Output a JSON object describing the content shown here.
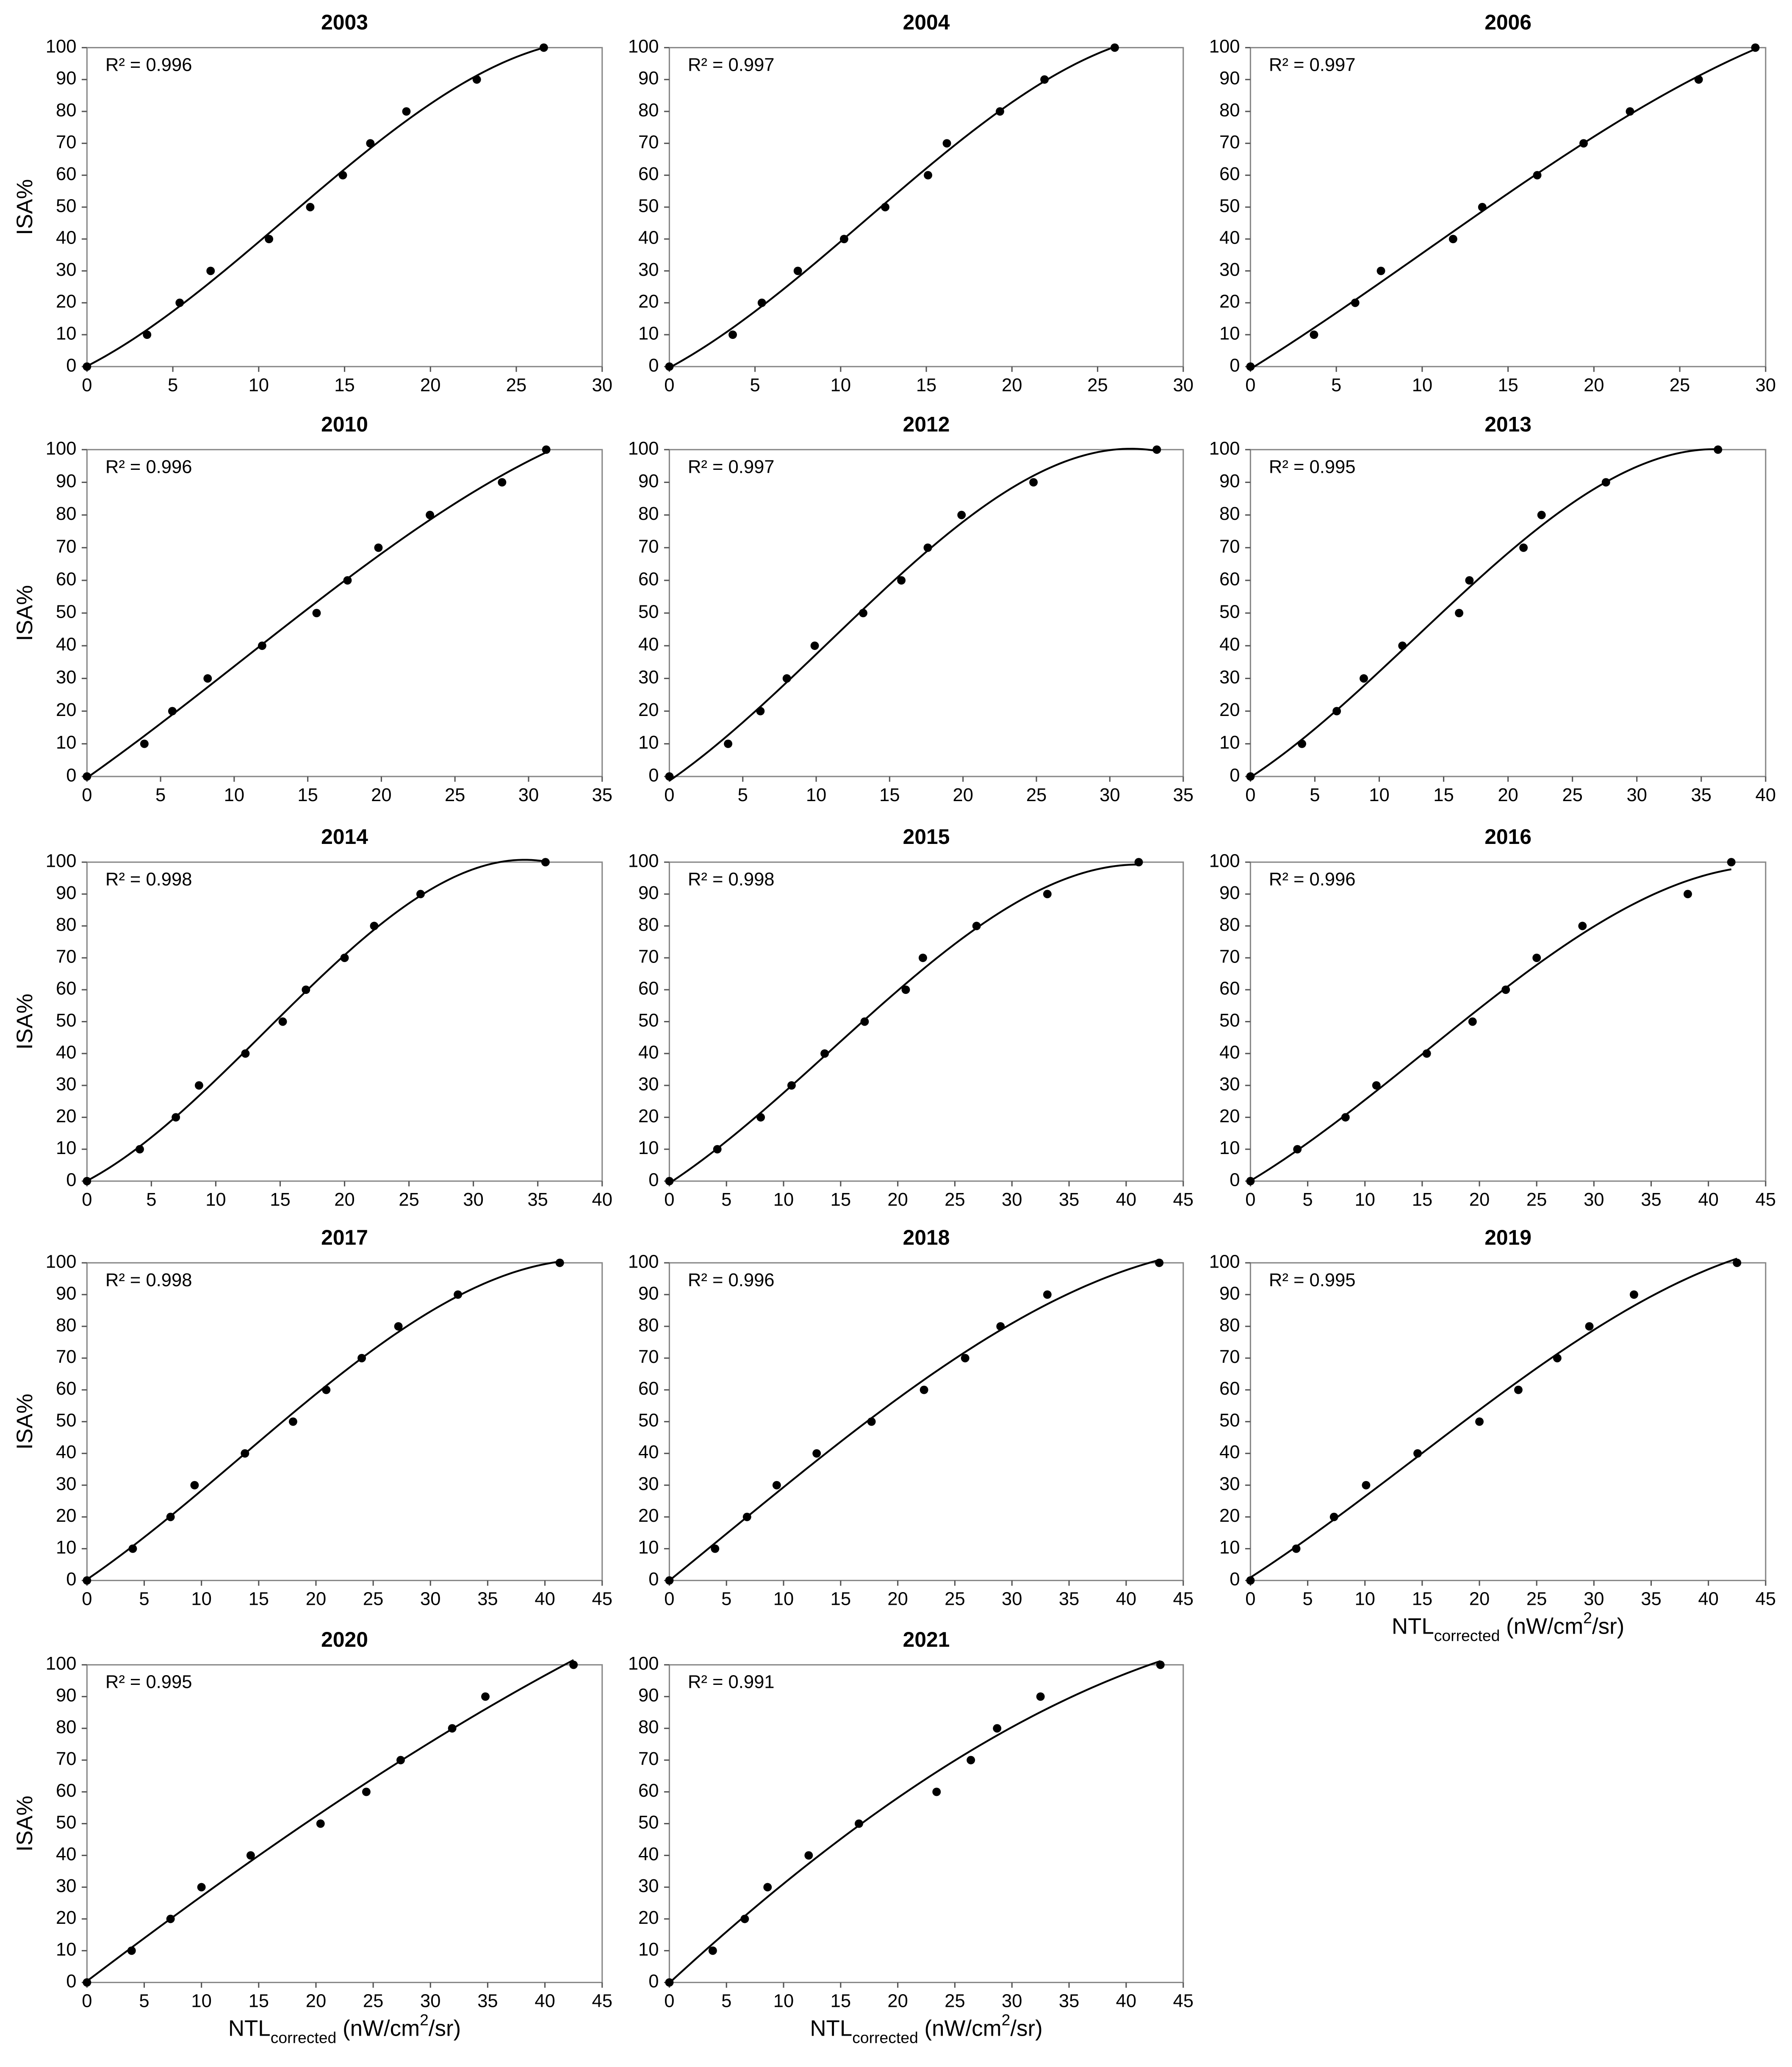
{
  "chart_data": [
    {
      "type": "scatter",
      "title": "2003",
      "annotation": "R² = 0.996",
      "ylabel": "ISA%",
      "color": "#000000",
      "trendline": true,
      "x": [
        0,
        3.5,
        5.4,
        7.2,
        10.6,
        13,
        14.9,
        16.5,
        18.6,
        22.7,
        26.6
      ],
      "values": [
        0,
        10,
        20,
        30,
        40,
        50,
        60,
        70,
        80,
        90,
        100
      ],
      "xlim": [
        0,
        30
      ],
      "xticks": [
        0,
        5,
        10,
        15,
        20,
        25,
        30
      ],
      "ylim": [
        0,
        100
      ],
      "yticks": [
        0,
        10,
        20,
        30,
        40,
        50,
        60,
        70,
        80,
        90,
        100
      ]
    },
    {
      "type": "scatter",
      "title": "2004",
      "annotation": "R² = 0.997",
      "color": "#000000",
      "trendline": true,
      "x": [
        0,
        3.7,
        5.4,
        7.5,
        10.2,
        12.6,
        15.1,
        16.2,
        19.3,
        21.9,
        26
      ],
      "values": [
        0,
        10,
        20,
        30,
        40,
        50,
        60,
        70,
        80,
        90,
        100
      ],
      "xlim": [
        0,
        30
      ],
      "xticks": [
        0,
        5,
        10,
        15,
        20,
        25,
        30
      ],
      "ylim": [
        0,
        100
      ],
      "yticks": [
        0,
        10,
        20,
        30,
        40,
        50,
        60,
        70,
        80,
        90,
        100
      ]
    },
    {
      "type": "scatter",
      "title": "2006",
      "annotation": "R² = 0.997",
      "color": "#000000",
      "trendline": true,
      "x": [
        0,
        3.7,
        6.1,
        7.6,
        11.8,
        13.5,
        16.7,
        19.4,
        22.1,
        26.1,
        29.4
      ],
      "values": [
        0,
        10,
        20,
        30,
        40,
        50,
        60,
        70,
        80,
        90,
        100
      ],
      "xlim": [
        0,
        30
      ],
      "xticks": [
        0,
        5,
        10,
        15,
        20,
        25,
        30
      ],
      "ylim": [
        0,
        100
      ],
      "yticks": [
        0,
        10,
        20,
        30,
        40,
        50,
        60,
        70,
        80,
        90,
        100
      ]
    },
    {
      "type": "scatter",
      "title": "2010",
      "annotation": "R² = 0.996",
      "ylabel": "ISA%",
      "color": "#000000",
      "trendline": true,
      "x": [
        0,
        3.9,
        5.8,
        8.2,
        11.9,
        15.6,
        17.7,
        19.8,
        23.3,
        28.2,
        31.2
      ],
      "values": [
        0,
        10,
        20,
        30,
        40,
        50,
        60,
        70,
        80,
        90,
        100
      ],
      "xlim": [
        0,
        35
      ],
      "xticks": [
        0,
        5,
        10,
        15,
        20,
        25,
        30,
        35
      ],
      "ylim": [
        0,
        100
      ],
      "yticks": [
        0,
        10,
        20,
        30,
        40,
        50,
        60,
        70,
        80,
        90,
        100
      ]
    },
    {
      "type": "scatter",
      "title": "2012",
      "annotation": "R² = 0.997",
      "color": "#000000",
      "trendline": true,
      "x": [
        0,
        4,
        6.2,
        8,
        9.9,
        13.2,
        15.8,
        17.6,
        19.9,
        24.8,
        33.2
      ],
      "values": [
        0,
        10,
        20,
        30,
        40,
        50,
        60,
        70,
        80,
        90,
        100
      ],
      "xlim": [
        0,
        35
      ],
      "xticks": [
        0,
        5,
        10,
        15,
        20,
        25,
        30,
        35
      ],
      "ylim": [
        0,
        100
      ],
      "yticks": [
        0,
        10,
        20,
        30,
        40,
        50,
        60,
        70,
        80,
        90,
        100
      ]
    },
    {
      "type": "scatter",
      "title": "2013",
      "annotation": "R² = 0.995",
      "color": "#000000",
      "trendline": true,
      "x": [
        0,
        4,
        6.7,
        8.8,
        11.8,
        16.2,
        17,
        21.2,
        22.6,
        27.6,
        36.3
      ],
      "values": [
        0,
        10,
        20,
        30,
        40,
        50,
        60,
        70,
        80,
        90,
        100
      ],
      "xlim": [
        0,
        40
      ],
      "xticks": [
        0,
        5,
        10,
        15,
        20,
        25,
        30,
        35,
        40
      ],
      "ylim": [
        0,
        100
      ],
      "yticks": [
        0,
        10,
        20,
        30,
        40,
        50,
        60,
        70,
        80,
        90,
        100
      ]
    },
    {
      "type": "scatter",
      "title": "2014",
      "annotation": "R² = 0.998",
      "ylabel": "ISA%",
      "color": "#000000",
      "trendline": true,
      "x": [
        0,
        4.1,
        6.9,
        8.7,
        12.3,
        15.2,
        17,
        20,
        22.3,
        25.9,
        35.6
      ],
      "values": [
        0,
        10,
        20,
        30,
        40,
        50,
        60,
        70,
        80,
        90,
        100
      ],
      "xlim": [
        0,
        40
      ],
      "xticks": [
        0,
        5,
        10,
        15,
        20,
        25,
        30,
        35,
        40
      ],
      "ylim": [
        0,
        100
      ],
      "yticks": [
        0,
        10,
        20,
        30,
        40,
        50,
        60,
        70,
        80,
        90,
        100
      ]
    },
    {
      "type": "scatter",
      "title": "2015",
      "annotation": "R² = 0.998",
      "color": "#000000",
      "trendline": true,
      "x": [
        0,
        4.2,
        8,
        10.7,
        13.6,
        17.1,
        20.7,
        22.2,
        26.9,
        33.1,
        41.1
      ],
      "values": [
        0,
        10,
        20,
        30,
        40,
        50,
        60,
        70,
        80,
        90,
        100
      ],
      "xlim": [
        0,
        45
      ],
      "xticks": [
        0,
        5,
        10,
        15,
        20,
        25,
        30,
        35,
        40,
        45
      ],
      "ylim": [
        0,
        100
      ],
      "yticks": [
        0,
        10,
        20,
        30,
        40,
        50,
        60,
        70,
        80,
        90,
        100
      ]
    },
    {
      "type": "scatter",
      "title": "2016",
      "annotation": "R² = 0.996",
      "color": "#000000",
      "trendline": true,
      "x": [
        0,
        4.1,
        8.3,
        11,
        15.4,
        19.4,
        22.3,
        25,
        29,
        38.2,
        42
      ],
      "values": [
        0,
        10,
        20,
        30,
        40,
        50,
        60,
        70,
        80,
        90,
        100
      ],
      "xlim": [
        0,
        45
      ],
      "xticks": [
        0,
        5,
        10,
        15,
        20,
        25,
        30,
        35,
        40,
        45
      ],
      "ylim": [
        0,
        100
      ],
      "yticks": [
        0,
        10,
        20,
        30,
        40,
        50,
        60,
        70,
        80,
        90,
        100
      ]
    },
    {
      "type": "scatter",
      "title": "2017",
      "annotation": "R² = 0.998",
      "ylabel": "ISA%",
      "color": "#000000",
      "trendline": true,
      "x": [
        0,
        4,
        7.3,
        9.4,
        13.8,
        18,
        20.9,
        24,
        27.2,
        32.4,
        41.3
      ],
      "values": [
        0,
        10,
        20,
        30,
        40,
        50,
        60,
        70,
        80,
        90,
        100
      ],
      "xlim": [
        0,
        45
      ],
      "xticks": [
        0,
        5,
        10,
        15,
        20,
        25,
        30,
        35,
        40,
        45
      ],
      "ylim": [
        0,
        100
      ],
      "yticks": [
        0,
        10,
        20,
        30,
        40,
        50,
        60,
        70,
        80,
        90,
        100
      ]
    },
    {
      "type": "scatter",
      "title": "2018",
      "annotation": "R² = 0.996",
      "color": "#000000",
      "trendline": true,
      "x": [
        0,
        4,
        6.8,
        9.4,
        12.9,
        17.7,
        22.3,
        25.9,
        29,
        33.1,
        42.9
      ],
      "values": [
        0,
        10,
        20,
        30,
        40,
        50,
        60,
        70,
        80,
        90,
        100
      ],
      "xlim": [
        0,
        45
      ],
      "xticks": [
        0,
        5,
        10,
        15,
        20,
        25,
        30,
        35,
        40,
        45
      ],
      "ylim": [
        0,
        100
      ],
      "yticks": [
        0,
        10,
        20,
        30,
        40,
        50,
        60,
        70,
        80,
        90,
        100
      ]
    },
    {
      "type": "scatter",
      "title": "2019",
      "annotation": "R² = 0.995",
      "color": "#000000",
      "trendline": true,
      "xlabel_parts": [
        {
          "text": "NTL"
        },
        {
          "text": "corrected",
          "shift": "sub"
        },
        {
          "text": " (nW/cm"
        },
        {
          "text": "2",
          "shift": "super"
        },
        {
          "text": "/sr)"
        }
      ],
      "x": [
        0,
        4,
        7.3,
        10.1,
        14.6,
        20,
        23.4,
        26.8,
        29.6,
        33.5,
        42.5
      ],
      "values": [
        0,
        10,
        20,
        30,
        40,
        50,
        60,
        70,
        80,
        90,
        100
      ],
      "xlim": [
        0,
        45
      ],
      "xticks": [
        0,
        5,
        10,
        15,
        20,
        25,
        30,
        35,
        40,
        45
      ],
      "ylim": [
        0,
        100
      ],
      "yticks": [
        0,
        10,
        20,
        30,
        40,
        50,
        60,
        70,
        80,
        90,
        100
      ]
    },
    {
      "type": "scatter",
      "title": "2020",
      "annotation": "R² = 0.995",
      "ylabel": "ISA%",
      "color": "#000000",
      "trendline": true,
      "xlabel_parts": [
        {
          "text": "NTL"
        },
        {
          "text": "corrected",
          "shift": "sub"
        },
        {
          "text": " (nW/cm"
        },
        {
          "text": "2",
          "shift": "super"
        },
        {
          "text": "/sr)"
        }
      ],
      "x": [
        0,
        3.9,
        7.3,
        10,
        14.3,
        20.4,
        24.4,
        27.4,
        31.9,
        34.8,
        42.5
      ],
      "values": [
        0,
        10,
        20,
        30,
        40,
        50,
        60,
        70,
        80,
        90,
        100
      ],
      "xlim": [
        0,
        45
      ],
      "xticks": [
        0,
        5,
        10,
        15,
        20,
        25,
        30,
        35,
        40,
        45
      ],
      "ylim": [
        0,
        100
      ],
      "yticks": [
        0,
        10,
        20,
        30,
        40,
        50,
        60,
        70,
        80,
        90,
        100
      ]
    },
    {
      "type": "scatter",
      "title": "2021",
      "annotation": "R² = 0.991",
      "color": "#000000",
      "trendline": true,
      "xlabel_parts": [
        {
          "text": "NTL"
        },
        {
          "text": "corrected",
          "shift": "sub"
        },
        {
          "text": " (nW/cm"
        },
        {
          "text": "2",
          "shift": "super"
        },
        {
          "text": "/sr)"
        }
      ],
      "x": [
        0,
        3.8,
        6.6,
        8.6,
        12.2,
        16.6,
        23.4,
        26.4,
        28.7,
        32.5,
        43
      ],
      "values": [
        0,
        10,
        20,
        30,
        40,
        50,
        60,
        70,
        80,
        90,
        100
      ],
      "xlim": [
        0,
        45
      ],
      "xticks": [
        0,
        5,
        10,
        15,
        20,
        25,
        30,
        35,
        40,
        45
      ],
      "ylim": [
        0,
        100
      ],
      "yticks": [
        0,
        10,
        20,
        30,
        40,
        50,
        60,
        70,
        80,
        90,
        100
      ]
    }
  ]
}
